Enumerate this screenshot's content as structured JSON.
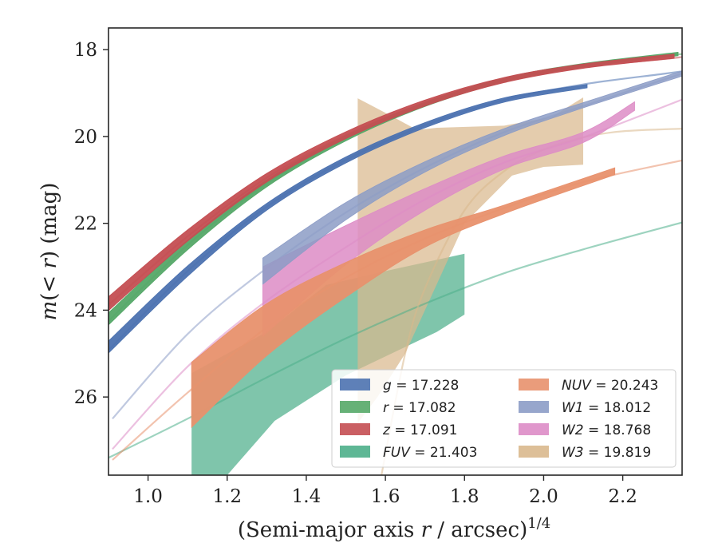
{
  "chart_data": {
    "type": "area",
    "xlabel_main": "(Semi-major axis ",
    "xlabel_var": "r",
    "xlabel_tail": " / arcsec)",
    "xlabel_exp": "1/4",
    "ylabel_pre": "m",
    "ylabel_mid": "(< ",
    "ylabel_var": "r",
    "ylabel_post": ") (mag)",
    "xlim": [
      0.9,
      2.35
    ],
    "ylim": [
      27.8,
      17.5
    ],
    "xticks": [
      "1.0",
      "1.2",
      "1.4",
      "1.6",
      "1.8",
      "2.0",
      "2.2"
    ],
    "yticks": [
      "18",
      "20",
      "22",
      "24",
      "26"
    ],
    "legend_location": "lower right",
    "series": [
      {
        "band": "g",
        "value": "17.228",
        "color": "#4c72b0",
        "model": [
          [
            0.9,
            24.92
          ],
          [
            1.1,
            23.1
          ],
          [
            1.3,
            21.62
          ],
          [
            1.5,
            20.54
          ],
          [
            1.7,
            19.74
          ],
          [
            1.9,
            19.16
          ],
          [
            2.1,
            18.8
          ],
          [
            2.3,
            18.56
          ],
          [
            2.35,
            18.5
          ]
        ],
        "data": [
          [
            0.9,
            24.85,
            0.14
          ],
          [
            1.1,
            23.1,
            0.12
          ],
          [
            1.3,
            21.62,
            0.08
          ],
          [
            1.5,
            20.54,
            0.07
          ],
          [
            1.7,
            19.74,
            0.06
          ],
          [
            1.9,
            19.16,
            0.05
          ],
          [
            2.11,
            18.84,
            0.04
          ]
        ]
      },
      {
        "band": "r",
        "value": "17.082",
        "color": "#55a868",
        "model": [
          [
            0.9,
            24.25
          ],
          [
            1.1,
            22.5
          ],
          [
            1.3,
            21.08
          ],
          [
            1.5,
            20.04
          ],
          [
            1.7,
            19.26
          ],
          [
            1.9,
            18.7
          ],
          [
            2.1,
            18.36
          ],
          [
            2.3,
            18.15
          ],
          [
            2.35,
            18.1
          ]
        ],
        "data": [
          [
            0.9,
            24.2,
            0.14
          ],
          [
            1.1,
            22.5,
            0.11
          ],
          [
            1.3,
            21.08,
            0.08
          ],
          [
            1.5,
            20.04,
            0.06
          ],
          [
            1.7,
            19.26,
            0.05
          ],
          [
            1.9,
            18.7,
            0.05
          ],
          [
            2.1,
            18.36,
            0.04
          ],
          [
            2.34,
            18.1,
            0.04
          ]
        ]
      },
      {
        "band": "z",
        "value": "17.091",
        "color": "#c44e52",
        "model": [
          [
            0.9,
            23.88
          ],
          [
            1.1,
            22.3
          ],
          [
            1.3,
            20.95
          ],
          [
            1.5,
            19.97
          ],
          [
            1.7,
            19.23
          ],
          [
            1.9,
            18.7
          ],
          [
            2.1,
            18.4
          ],
          [
            2.3,
            18.22
          ],
          [
            2.35,
            18.17
          ]
        ],
        "data": [
          [
            0.9,
            23.85,
            0.16
          ],
          [
            1.1,
            22.28,
            0.13
          ],
          [
            1.3,
            20.95,
            0.1
          ],
          [
            1.5,
            19.97,
            0.08
          ],
          [
            1.7,
            19.23,
            0.07
          ],
          [
            1.9,
            18.7,
            0.06
          ],
          [
            2.1,
            18.38,
            0.05
          ],
          [
            2.33,
            18.15,
            0.05
          ]
        ]
      },
      {
        "band": "FUV",
        "value": "21.403",
        "color": "#4daf8a",
        "model": [
          [
            0.9,
            27.4
          ],
          [
            1.1,
            26.5
          ],
          [
            1.3,
            25.55
          ],
          [
            1.5,
            24.65
          ],
          [
            1.7,
            23.85
          ],
          [
            1.9,
            23.15
          ],
          [
            2.1,
            22.6
          ],
          [
            2.35,
            21.98
          ]
        ],
        "band_upper": [
          [
            1.11,
            25.45
          ],
          [
            1.3,
            24.5
          ],
          [
            1.45,
            23.42
          ],
          [
            1.6,
            23.1
          ],
          [
            1.8,
            22.7
          ]
        ],
        "band_lower": [
          [
            1.11,
            27.8
          ],
          [
            1.2,
            27.8
          ],
          [
            1.32,
            26.55
          ],
          [
            1.5,
            25.5
          ],
          [
            1.73,
            24.5
          ],
          [
            1.8,
            24.1
          ]
        ]
      },
      {
        "band": "NUV",
        "value": "20.243",
        "color": "#e8916d",
        "model": [
          [
            0.91,
            27.45
          ],
          [
            1.1,
            25.9
          ],
          [
            1.3,
            24.4
          ],
          [
            1.5,
            23.25
          ],
          [
            1.7,
            22.35
          ],
          [
            1.9,
            21.65
          ],
          [
            2.1,
            21.05
          ],
          [
            2.35,
            20.55
          ]
        ],
        "data": [
          [
            1.11,
            25.95,
            0.75
          ],
          [
            1.3,
            24.45,
            0.6
          ],
          [
            1.5,
            23.3,
            0.4
          ],
          [
            1.7,
            22.35,
            0.2
          ],
          [
            1.9,
            21.68,
            0.1
          ],
          [
            2.18,
            20.8,
            0.08
          ]
        ]
      },
      {
        "band": "W1",
        "value": "18.012",
        "color": "#8c9cc6",
        "model": [
          [
            0.91,
            26.5
          ],
          [
            1.1,
            24.55
          ],
          [
            1.29,
            23.1
          ],
          [
            1.5,
            21.75
          ],
          [
            1.7,
            20.72
          ],
          [
            1.9,
            19.9
          ],
          [
            2.1,
            19.3
          ],
          [
            2.35,
            18.55
          ]
        ],
        "data": [
          [
            1.29,
            23.1,
            0.3
          ],
          [
            1.5,
            21.72,
            0.2
          ],
          [
            1.7,
            20.7,
            0.12
          ],
          [
            1.9,
            19.9,
            0.08
          ],
          [
            2.1,
            19.28,
            0.06
          ],
          [
            2.35,
            18.55,
            0.06
          ]
        ]
      },
      {
        "band": "W2",
        "value": "18.768",
        "color": "#dd8cc6",
        "model": [
          [
            0.91,
            27.2
          ],
          [
            1.1,
            25.3
          ],
          [
            1.29,
            23.85
          ],
          [
            1.5,
            22.55
          ],
          [
            1.7,
            21.45
          ],
          [
            1.9,
            20.6
          ],
          [
            2.1,
            20.02
          ],
          [
            2.35,
            19.15
          ]
        ],
        "data": [
          [
            1.29,
            23.8,
            0.8
          ],
          [
            1.5,
            22.5,
            0.45
          ],
          [
            1.7,
            21.45,
            0.25
          ],
          [
            1.9,
            20.6,
            0.15
          ],
          [
            2.1,
            20.02,
            0.12
          ],
          [
            2.23,
            19.3,
            0.1
          ]
        ]
      },
      {
        "band": "W3",
        "value": "19.819",
        "color": "#d9b88d",
        "model": [
          [
            1.59,
            27.8
          ],
          [
            1.65,
            25.0
          ],
          [
            1.7,
            23.5
          ],
          [
            1.8,
            21.7
          ],
          [
            1.9,
            20.8
          ],
          [
            2.0,
            20.3
          ],
          [
            2.1,
            20.02
          ],
          [
            2.2,
            19.88
          ],
          [
            2.35,
            19.82
          ]
        ],
        "band_upper": [
          [
            1.53,
            19.12
          ],
          [
            1.62,
            19.55
          ],
          [
            1.68,
            19.85
          ],
          [
            1.73,
            19.8
          ],
          [
            1.9,
            19.75
          ],
          [
            2.02,
            19.55
          ],
          [
            2.1,
            19.1
          ]
        ],
        "band_lower": [
          [
            1.53,
            26.6
          ],
          [
            1.58,
            26.0
          ],
          [
            1.65,
            25.0
          ],
          [
            1.8,
            22.0
          ],
          [
            1.92,
            20.9
          ],
          [
            2.0,
            20.7
          ],
          [
            2.1,
            20.65
          ]
        ]
      }
    ]
  }
}
